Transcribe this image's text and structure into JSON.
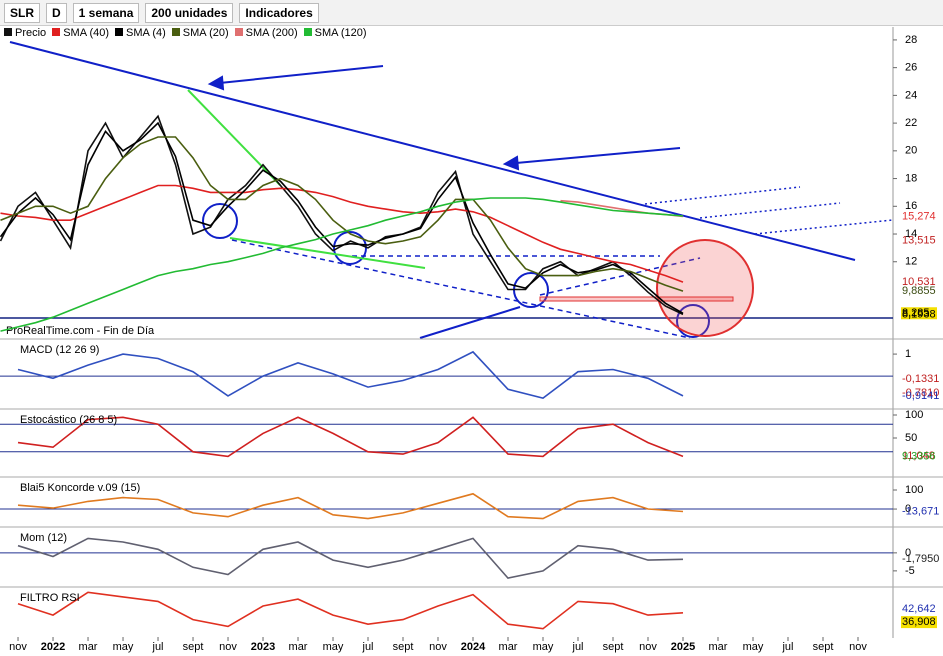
{
  "toolbar": {
    "symbol": "SLR",
    "d": "D",
    "period": "1 semana",
    "units": "200 unidades",
    "indicators": "Indicadores"
  },
  "source": "ProRealTime.com - Fin de Día",
  "chart_data": [
    {
      "type": "line",
      "xlim": [
        -1.03,
        50
      ],
      "ylim": [
        6.5,
        28.86
      ],
      "x": [
        -1,
        0,
        1,
        2,
        3,
        4,
        5,
        6,
        7,
        8,
        9,
        10,
        11,
        12,
        13,
        14,
        15,
        16,
        17,
        18,
        19,
        20,
        21,
        22,
        23,
        24,
        25,
        26,
        27,
        28,
        29,
        30,
        31,
        32,
        33,
        34,
        35,
        36,
        37,
        38
      ],
      "xticks": [
        {
          "value": 0,
          "label": "nov"
        },
        {
          "value": 2,
          "label": "2022"
        },
        {
          "value": 4,
          "label": "mar"
        },
        {
          "value": 6,
          "label": "may"
        },
        {
          "value": 8,
          "label": "jul"
        },
        {
          "value": 10,
          "label": "sept"
        },
        {
          "value": 12,
          "label": "nov"
        },
        {
          "value": 14,
          "label": "2023"
        },
        {
          "value": 16,
          "label": "mar"
        },
        {
          "value": 18,
          "label": "may"
        },
        {
          "value": 20,
          "label": "jul"
        },
        {
          "value": 22,
          "label": "sept"
        },
        {
          "value": 24,
          "label": "nov"
        },
        {
          "value": 26,
          "label": "2024"
        },
        {
          "value": 28,
          "label": "mar"
        },
        {
          "value": 30,
          "label": "may"
        },
        {
          "value": 32,
          "label": "jul"
        },
        {
          "value": 34,
          "label": "sept"
        },
        {
          "value": 36,
          "label": "nov"
        },
        {
          "value": 38,
          "label": "2025"
        },
        {
          "value": 40,
          "label": "mar"
        },
        {
          "value": 42,
          "label": "may"
        },
        {
          "value": 44,
          "label": "jul"
        },
        {
          "value": 46,
          "label": "sept"
        },
        {
          "value": 48,
          "label": "nov"
        }
      ],
      "yticks": [
        12,
        14,
        16,
        18,
        20,
        22,
        24,
        26,
        28
      ],
      "series": [
        {
          "name": "Precio",
          "color": "#111111",
          "values": [
            13.5,
            16,
            17,
            15,
            13,
            20,
            22,
            19.5,
            21,
            22.5,
            19,
            14,
            14.5,
            16.5,
            17.5,
            19,
            17.5,
            16,
            14,
            12.8,
            13.5,
            13,
            13.8,
            14,
            14.5,
            17,
            18.5,
            14,
            12,
            10,
            10,
            11.5,
            12,
            11,
            11.5,
            12,
            11,
            9.8,
            8.8,
            8.2
          ]
        },
        {
          "name": "SMA (40)",
          "color": "#e02020",
          "values": [
            15.5,
            15.3,
            15.2,
            15,
            15,
            15.5,
            16,
            16.5,
            17,
            17.5,
            17.5,
            17.3,
            17,
            17,
            17,
            17.2,
            17.3,
            17.2,
            17,
            16.7,
            16.3,
            16,
            15.8,
            15.6,
            15.5,
            15.6,
            15.8,
            15.6,
            15.2,
            14.6,
            14,
            13.4,
            12.9,
            12.6,
            12.3,
            12,
            11.8,
            11.4,
            11,
            10.531
          ]
        },
        {
          "name": "SMA (4)",
          "color": "#000000",
          "values": [
            13.8,
            15.5,
            16.6,
            15.4,
            13.6,
            19,
            21.4,
            20,
            20.8,
            22,
            19.6,
            15,
            14.6,
            16,
            17.2,
            18.6,
            17.8,
            16.4,
            14.5,
            13.1,
            13.3,
            13.2,
            13.7,
            14,
            14.4,
            16.5,
            18.1,
            14.8,
            12.5,
            10.4,
            10.1,
            11.2,
            11.8,
            11.2,
            11.4,
            11.8,
            11.2,
            10.1,
            9,
            8.285
          ]
        },
        {
          "name": "SMA (20)",
          "color": "#4a5e10",
          "values": [
            15,
            15.5,
            16,
            16,
            15.5,
            16,
            18,
            19.5,
            20.5,
            21,
            21,
            19.5,
            17.5,
            16.5,
            16.5,
            17.5,
            18,
            17.5,
            16.5,
            15,
            14,
            13.5,
            13.3,
            13.5,
            13.8,
            15,
            16.5,
            16.5,
            15,
            13,
            11.5,
            11,
            11,
            11,
            11.3,
            11.5,
            11.3,
            10.8,
            10.3,
            9.8855
          ]
        },
        {
          "name": "SMA (200)",
          "color": "#e07070",
          "values": [
            null,
            null,
            null,
            null,
            null,
            null,
            null,
            null,
            null,
            null,
            null,
            null,
            null,
            null,
            null,
            null,
            null,
            null,
            null,
            null,
            null,
            null,
            null,
            null,
            null,
            null,
            null,
            null,
            null,
            null,
            null,
            null,
            16.4,
            16.3,
            16.1,
            15.9,
            15.7,
            15.5,
            15.4,
            15.274
          ]
        },
        {
          "name": "SMA (120)",
          "color": "#22bb33",
          "values": [
            7,
            7.3,
            7.6,
            8,
            8.5,
            9,
            9.5,
            10,
            10.5,
            11,
            11.3,
            11.5,
            11.8,
            12,
            12.3,
            12.6,
            13,
            13.3,
            13.6,
            14,
            14.3,
            14.6,
            15,
            15.3,
            15.6,
            16,
            16.3,
            16.5,
            16.6,
            16.6,
            16.6,
            16.5,
            16.3,
            16.1,
            15.9,
            15.7,
            15.6,
            15.5,
            15.4,
            15.3
          ]
        }
      ],
      "right_labels": [
        {
          "value": 15.274,
          "label": "15,274",
          "color": "#e03030"
        },
        {
          "value": 13.515,
          "label": "13,515",
          "color": "#c02020"
        },
        {
          "value": 10.531,
          "label": "10,531",
          "color": "#c02020"
        },
        {
          "value": 9.8855,
          "label": "9,8855",
          "color": "#3a4a10"
        },
        {
          "value": 8.285,
          "label": "8,285",
          "color": "#000000",
          "background": "#f5e000"
        },
        {
          "value": 8.1938,
          "label": "8,1938",
          "color": "#000000"
        }
      ]
    },
    {
      "type": "line",
      "title": "MACD (12 26 9)",
      "xlim": [
        -1.03,
        50
      ],
      "ylim": [
        -1.45,
        1.64
      ],
      "x": [
        0,
        2,
        4,
        6,
        8,
        10,
        12,
        14,
        16,
        18,
        20,
        22,
        24,
        26,
        28,
        30,
        32,
        34,
        36,
        38
      ],
      "values": [
        0.3,
        -0.1,
        0.5,
        1.0,
        0.8,
        0.2,
        -0.9,
        0.0,
        0.6,
        0.1,
        -0.5,
        -0.2,
        0.3,
        1.1,
        -0.6,
        -1.0,
        0.2,
        0.3,
        -0.1,
        -0.9
      ],
      "color": "#3050c0",
      "yticks": [
        1
      ],
      "reference_lines": [
        0
      ],
      "right_labels": [
        {
          "value": -0.1331,
          "label": "-0,1331",
          "color": "#c02020"
        },
        {
          "value": -0.781,
          "label": "-0,7810",
          "color": "#c02020"
        },
        {
          "value": -0.9141,
          "label": "-0,9141",
          "color": "#2030b0"
        }
      ]
    },
    {
      "type": "line",
      "title": "Estocástico (26 8 5)",
      "xlim": [
        -1.03,
        50
      ],
      "ylim": [
        -32.6,
        110.9
      ],
      "x": [
        0,
        2,
        4,
        6,
        8,
        10,
        12,
        14,
        16,
        18,
        20,
        22,
        24,
        26,
        28,
        30,
        32,
        34,
        36,
        38
      ],
      "values": [
        40,
        30,
        90,
        95,
        80,
        20,
        10,
        60,
        95,
        60,
        20,
        15,
        40,
        95,
        15,
        10,
        70,
        80,
        40,
        10
      ],
      "color": "#d02020",
      "yticks": [
        100,
        50
      ],
      "reference_lines": [
        80,
        20
      ],
      "right_labels": [
        {
          "value": 11.048,
          "label": "11,048",
          "color": "#c02020"
        },
        {
          "value": 9.3356,
          "label": "9,3356",
          "color": "#20a020"
        }
      ]
    },
    {
      "type": "line",
      "title": "Blai5 Koncorde v.09 (15)",
      "xlim": [
        -1.03,
        50
      ],
      "ylim": [
        -89,
        163
      ],
      "x": [
        0,
        2,
        4,
        6,
        8,
        10,
        12,
        14,
        16,
        18,
        20,
        22,
        24,
        26,
        28,
        30,
        32,
        34,
        36,
        38
      ],
      "values": [
        20,
        5,
        40,
        60,
        50,
        -20,
        -40,
        20,
        60,
        -30,
        -50,
        -20,
        30,
        80,
        -40,
        -50,
        40,
        60,
        0,
        -13
      ],
      "color": "#e07a20",
      "yticks": [
        100,
        0
      ],
      "reference_lines": [
        0
      ],
      "right_labels": [
        {
          "value": -13.671,
          "label": "-13,671",
          "color": "#2030b0"
        }
      ]
    },
    {
      "type": "line",
      "title": "Mom (12)",
      "xlim": [
        -1.03,
        50
      ],
      "ylim": [
        -9.2,
        6.9
      ],
      "x": [
        0,
        2,
        4,
        6,
        8,
        10,
        12,
        14,
        16,
        18,
        20,
        22,
        24,
        26,
        28,
        30,
        32,
        34,
        36,
        38
      ],
      "values": [
        2,
        -1,
        4,
        3,
        1,
        -4,
        -6,
        1,
        3,
        -2,
        -4,
        -2,
        1,
        4,
        -7,
        -5,
        2,
        1,
        -2,
        -1.795
      ],
      "color": "#606070",
      "yticks": [
        0,
        -5
      ],
      "reference_lines": [
        0
      ],
      "right_labels": [
        {
          "value": -1.795,
          "label": "-1,7950",
          "color": "#222222"
        }
      ]
    },
    {
      "type": "line",
      "title": "FILTRO RSI",
      "xlim": [
        -1.03,
        50
      ],
      "ylim": [
        30.8,
        51.9
      ],
      "x": [
        0,
        2,
        4,
        6,
        8,
        10,
        12,
        14,
        16,
        18,
        20,
        22,
        24,
        26,
        28,
        30,
        32,
        34,
        36,
        38
      ],
      "values": [
        45,
        40,
        50,
        48,
        46,
        38,
        35,
        44,
        47,
        40,
        36,
        38,
        44,
        49,
        36,
        34,
        46,
        45,
        40,
        41
      ],
      "color": "#e03020",
      "right_labels": [
        {
          "value": 42.642,
          "label": "42,642",
          "color": "#2030b0"
        },
        {
          "value": 36.908,
          "label": "36,908",
          "color": "#000000",
          "background": "#f5e000"
        }
      ]
    }
  ]
}
